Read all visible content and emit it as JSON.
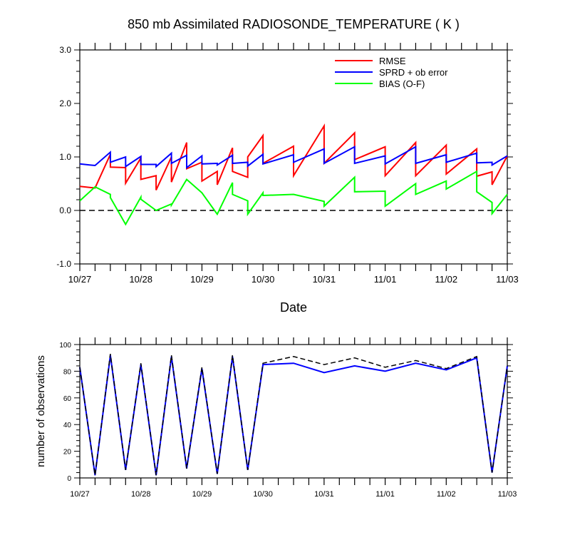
{
  "title": "850 mb Assimilated RADIOSONDE_TEMPERATURE ( K )",
  "chart_data": [
    {
      "type": "line",
      "xlabel": "Date",
      "ylabel": "",
      "xlim": [
        0,
        7
      ],
      "ylim": [
        -1.0,
        3.0
      ],
      "x_tick_labels": [
        "10/27",
        "10/28",
        "10/29",
        "10/30",
        "10/31",
        "11/01",
        "11/02",
        "11/03"
      ],
      "y_tick_labels": [
        "3.0",
        "2.0",
        "1.0",
        "0.0",
        "-1.0"
      ],
      "legend": [
        "RMSE",
        "SPRD + ob error",
        "BIAS (O-F)"
      ],
      "legend_position": "top-right",
      "reference_line": {
        "y": 0.0,
        "style": "dashed"
      },
      "series": [
        {
          "name": "RMSE",
          "color": "#ff0000",
          "points": [
            [
              0,
              0.45
            ],
            [
              0.25,
              0.42
            ],
            [
              0.5,
              1.05
            ],
            [
              0.5,
              0.81
            ],
            [
              0.75,
              0.8
            ],
            [
              0.75,
              0.51
            ],
            [
              1,
              0.98
            ],
            [
              1,
              0.58
            ],
            [
              1.25,
              0.65
            ],
            [
              1.25,
              0.38
            ],
            [
              1.5,
              1.0
            ],
            [
              1.5,
              0.53
            ],
            [
              1.75,
              1.27
            ],
            [
              1.75,
              0.78
            ],
            [
              2,
              0.9
            ],
            [
              2,
              0.55
            ],
            [
              2.25,
              0.73
            ],
            [
              2.25,
              0.48
            ],
            [
              2.5,
              1.17
            ],
            [
              2.5,
              0.73
            ],
            [
              2.75,
              0.62
            ],
            [
              2.75,
              1.0
            ],
            [
              3,
              1.4
            ],
            [
              3,
              0.88
            ],
            [
              3.5,
              1.2
            ],
            [
              3.5,
              0.65
            ],
            [
              4,
              1.58
            ],
            [
              4,
              0.88
            ],
            [
              4.5,
              1.45
            ],
            [
              4.5,
              0.95
            ],
            [
              5,
              1.19
            ],
            [
              5,
              0.65
            ],
            [
              5.5,
              1.27
            ],
            [
              5.5,
              0.65
            ],
            [
              6,
              1.22
            ],
            [
              6,
              0.68
            ],
            [
              6.5,
              1.15
            ],
            [
              6.5,
              0.64
            ],
            [
              6.75,
              0.72
            ],
            [
              6.75,
              0.48
            ],
            [
              7,
              1.02
            ]
          ]
        },
        {
          "name": "SPRD + ob error",
          "color": "#0000ff",
          "points": [
            [
              0,
              0.87
            ],
            [
              0.25,
              0.84
            ],
            [
              0.5,
              1.09
            ],
            [
              0.5,
              0.9
            ],
            [
              0.75,
              1.0
            ],
            [
              0.75,
              0.82
            ],
            [
              1,
              1.01
            ],
            [
              1,
              0.86
            ],
            [
              1.25,
              0.86
            ],
            [
              1.25,
              0.82
            ],
            [
              1.5,
              1.07
            ],
            [
              1.5,
              0.88
            ],
            [
              1.75,
              1.03
            ],
            [
              1.75,
              0.8
            ],
            [
              2,
              1.02
            ],
            [
              2,
              0.87
            ],
            [
              2.25,
              0.88
            ],
            [
              2.25,
              0.85
            ],
            [
              2.5,
              1.03
            ],
            [
              2.5,
              0.88
            ],
            [
              2.75,
              0.9
            ],
            [
              2.75,
              0.83
            ],
            [
              3,
              1.05
            ],
            [
              3,
              0.87
            ],
            [
              3.5,
              1.04
            ],
            [
              3.5,
              0.9
            ],
            [
              4,
              1.15
            ],
            [
              4,
              0.88
            ],
            [
              4.5,
              1.19
            ],
            [
              4.5,
              0.88
            ],
            [
              5,
              1.02
            ],
            [
              5,
              0.87
            ],
            [
              5.5,
              1.19
            ],
            [
              5.5,
              0.88
            ],
            [
              6,
              1.04
            ],
            [
              6,
              0.9
            ],
            [
              6.5,
              1.07
            ],
            [
              6.5,
              0.89
            ],
            [
              6.75,
              0.9
            ],
            [
              6.75,
              0.85
            ],
            [
              7,
              1.02
            ]
          ]
        },
        {
          "name": "BIAS (O-F)",
          "color": "#00ff00",
          "points": [
            [
              0,
              0.18
            ],
            [
              0.25,
              0.44
            ],
            [
              0.5,
              0.3
            ],
            [
              0.5,
              0.24
            ],
            [
              0.75,
              -0.26
            ],
            [
              1,
              0.25
            ],
            [
              1,
              0.21
            ],
            [
              1.25,
              0.0
            ],
            [
              1.5,
              0.12
            ],
            [
              1.5,
              0.1
            ],
            [
              1.75,
              0.58
            ],
            [
              2,
              0.33
            ],
            [
              2.25,
              -0.07
            ],
            [
              2.5,
              0.52
            ],
            [
              2.5,
              0.3
            ],
            [
              2.75,
              0.18
            ],
            [
              2.75,
              -0.07
            ],
            [
              3,
              0.33
            ],
            [
              3,
              0.28
            ],
            [
              3.5,
              0.3
            ],
            [
              4,
              0.17
            ],
            [
              4,
              0.08
            ],
            [
              4.5,
              0.62
            ],
            [
              4.5,
              0.35
            ],
            [
              5,
              0.36
            ],
            [
              5,
              0.08
            ],
            [
              5.5,
              0.5
            ],
            [
              5.5,
              0.3
            ],
            [
              6,
              0.55
            ],
            [
              6,
              0.4
            ],
            [
              6.5,
              0.73
            ],
            [
              6.5,
              0.35
            ],
            [
              6.75,
              0.15
            ],
            [
              6.75,
              -0.06
            ],
            [
              7,
              0.3
            ]
          ]
        }
      ]
    },
    {
      "type": "line",
      "xlabel": "",
      "ylabel": "number of observations",
      "xlim": [
        0,
        7
      ],
      "ylim": [
        0,
        100
      ],
      "x_tick_labels": [
        "10/27",
        "10/28",
        "10/29",
        "10/30",
        "10/31",
        "11/01",
        "11/02",
        "11/03"
      ],
      "y_tick_labels": [
        "100",
        "80",
        "60",
        "40",
        "20",
        "0"
      ],
      "series": [
        {
          "color": "#0000ff",
          "style": "solid",
          "points": [
            [
              0,
              83
            ],
            [
              0.25,
              2
            ],
            [
              0.5,
              92
            ],
            [
              0.75,
              6
            ],
            [
              1,
              85
            ],
            [
              1.25,
              2
            ],
            [
              1.5,
              91
            ],
            [
              1.75,
              7
            ],
            [
              2,
              82
            ],
            [
              2.25,
              3
            ],
            [
              2.5,
              91
            ],
            [
              2.75,
              6
            ],
            [
              3,
              85
            ],
            [
              3.5,
              86
            ],
            [
              4,
              79
            ],
            [
              4.5,
              84
            ],
            [
              5,
              80
            ],
            [
              5.5,
              86
            ],
            [
              6,
              81
            ],
            [
              6.5,
              90
            ],
            [
              6.75,
              4
            ],
            [
              7,
              84
            ]
          ]
        },
        {
          "color": "#000000",
          "style": "dashed",
          "points": [
            [
              0,
              83
            ],
            [
              0.25,
              2
            ],
            [
              0.5,
              93
            ],
            [
              0.75,
              6
            ],
            [
              1,
              86
            ],
            [
              1.25,
              2
            ],
            [
              1.5,
              92
            ],
            [
              1.75,
              7
            ],
            [
              2,
              83
            ],
            [
              2.25,
              3
            ],
            [
              2.5,
              92
            ],
            [
              2.75,
              6
            ],
            [
              3,
              86
            ],
            [
              3.5,
              91
            ],
            [
              4,
              85
            ],
            [
              4.5,
              90
            ],
            [
              5,
              83
            ],
            [
              5.5,
              88
            ],
            [
              6,
              82
            ],
            [
              6.5,
              91
            ],
            [
              6.75,
              4
            ],
            [
              7,
              84
            ]
          ]
        }
      ]
    }
  ]
}
